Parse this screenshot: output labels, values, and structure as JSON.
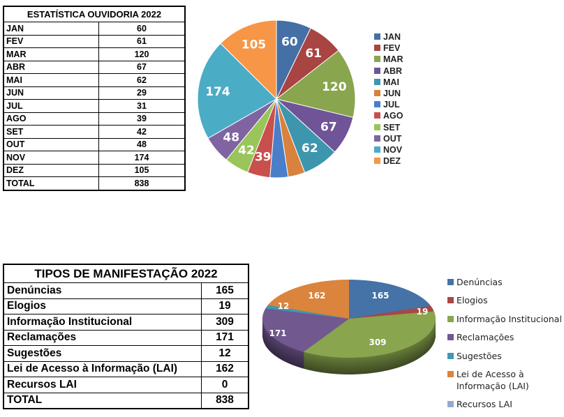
{
  "chart_data": [
    {
      "type": "pie",
      "title": "ESTATÍSTICA OUVIDORIA 2022",
      "categories": [
        "JAN",
        "FEV",
        "MAR",
        "ABR",
        "MAI",
        "JUN",
        "JUL",
        "AGO",
        "SET",
        "OUT",
        "NOV",
        "DEZ"
      ],
      "values": [
        60,
        61,
        120,
        67,
        62,
        29,
        31,
        39,
        42,
        48,
        174,
        105
      ],
      "data_labels": [
        "60",
        "61",
        "120",
        "67",
        "62",
        "",
        "",
        "39",
        "42",
        "48",
        "174",
        "105"
      ],
      "colors": [
        "#4470a6",
        "#a84442",
        "#89a54e",
        "#6f5597",
        "#3d96ae",
        "#d8823d",
        "#4a7ec9",
        "#c94f4c",
        "#99c55a",
        "#8064a2",
        "#4bacc6",
        "#f79646"
      ],
      "total_label": "TOTAL",
      "total": 838,
      "legend": "right"
    },
    {
      "type": "pie",
      "title": "TIPOS DE MANIFESTAÇÃO 2022",
      "style": "3d",
      "categories": [
        "Denúncias",
        "Elogios",
        "Informação Institucional",
        "Reclamações",
        "Sugestões",
        "Lei de Acesso à Informação (LAI)",
        "Recursos LAI"
      ],
      "legend_labels": [
        "Denúncias",
        "Elogios",
        "Informação Institucional",
        "Reclamações",
        "Sugestões",
        "Lei de Acesso à Informação (LAI)",
        "Recursos LAI"
      ],
      "values": [
        165,
        19,
        309,
        171,
        12,
        162,
        0
      ],
      "colors": [
        "#4572a7",
        "#aa4643",
        "#89a54e",
        "#71588f",
        "#4198af",
        "#db843d",
        "#93a9cf"
      ],
      "total_label": "TOTAL",
      "total": 838,
      "legend": "right"
    }
  ]
}
